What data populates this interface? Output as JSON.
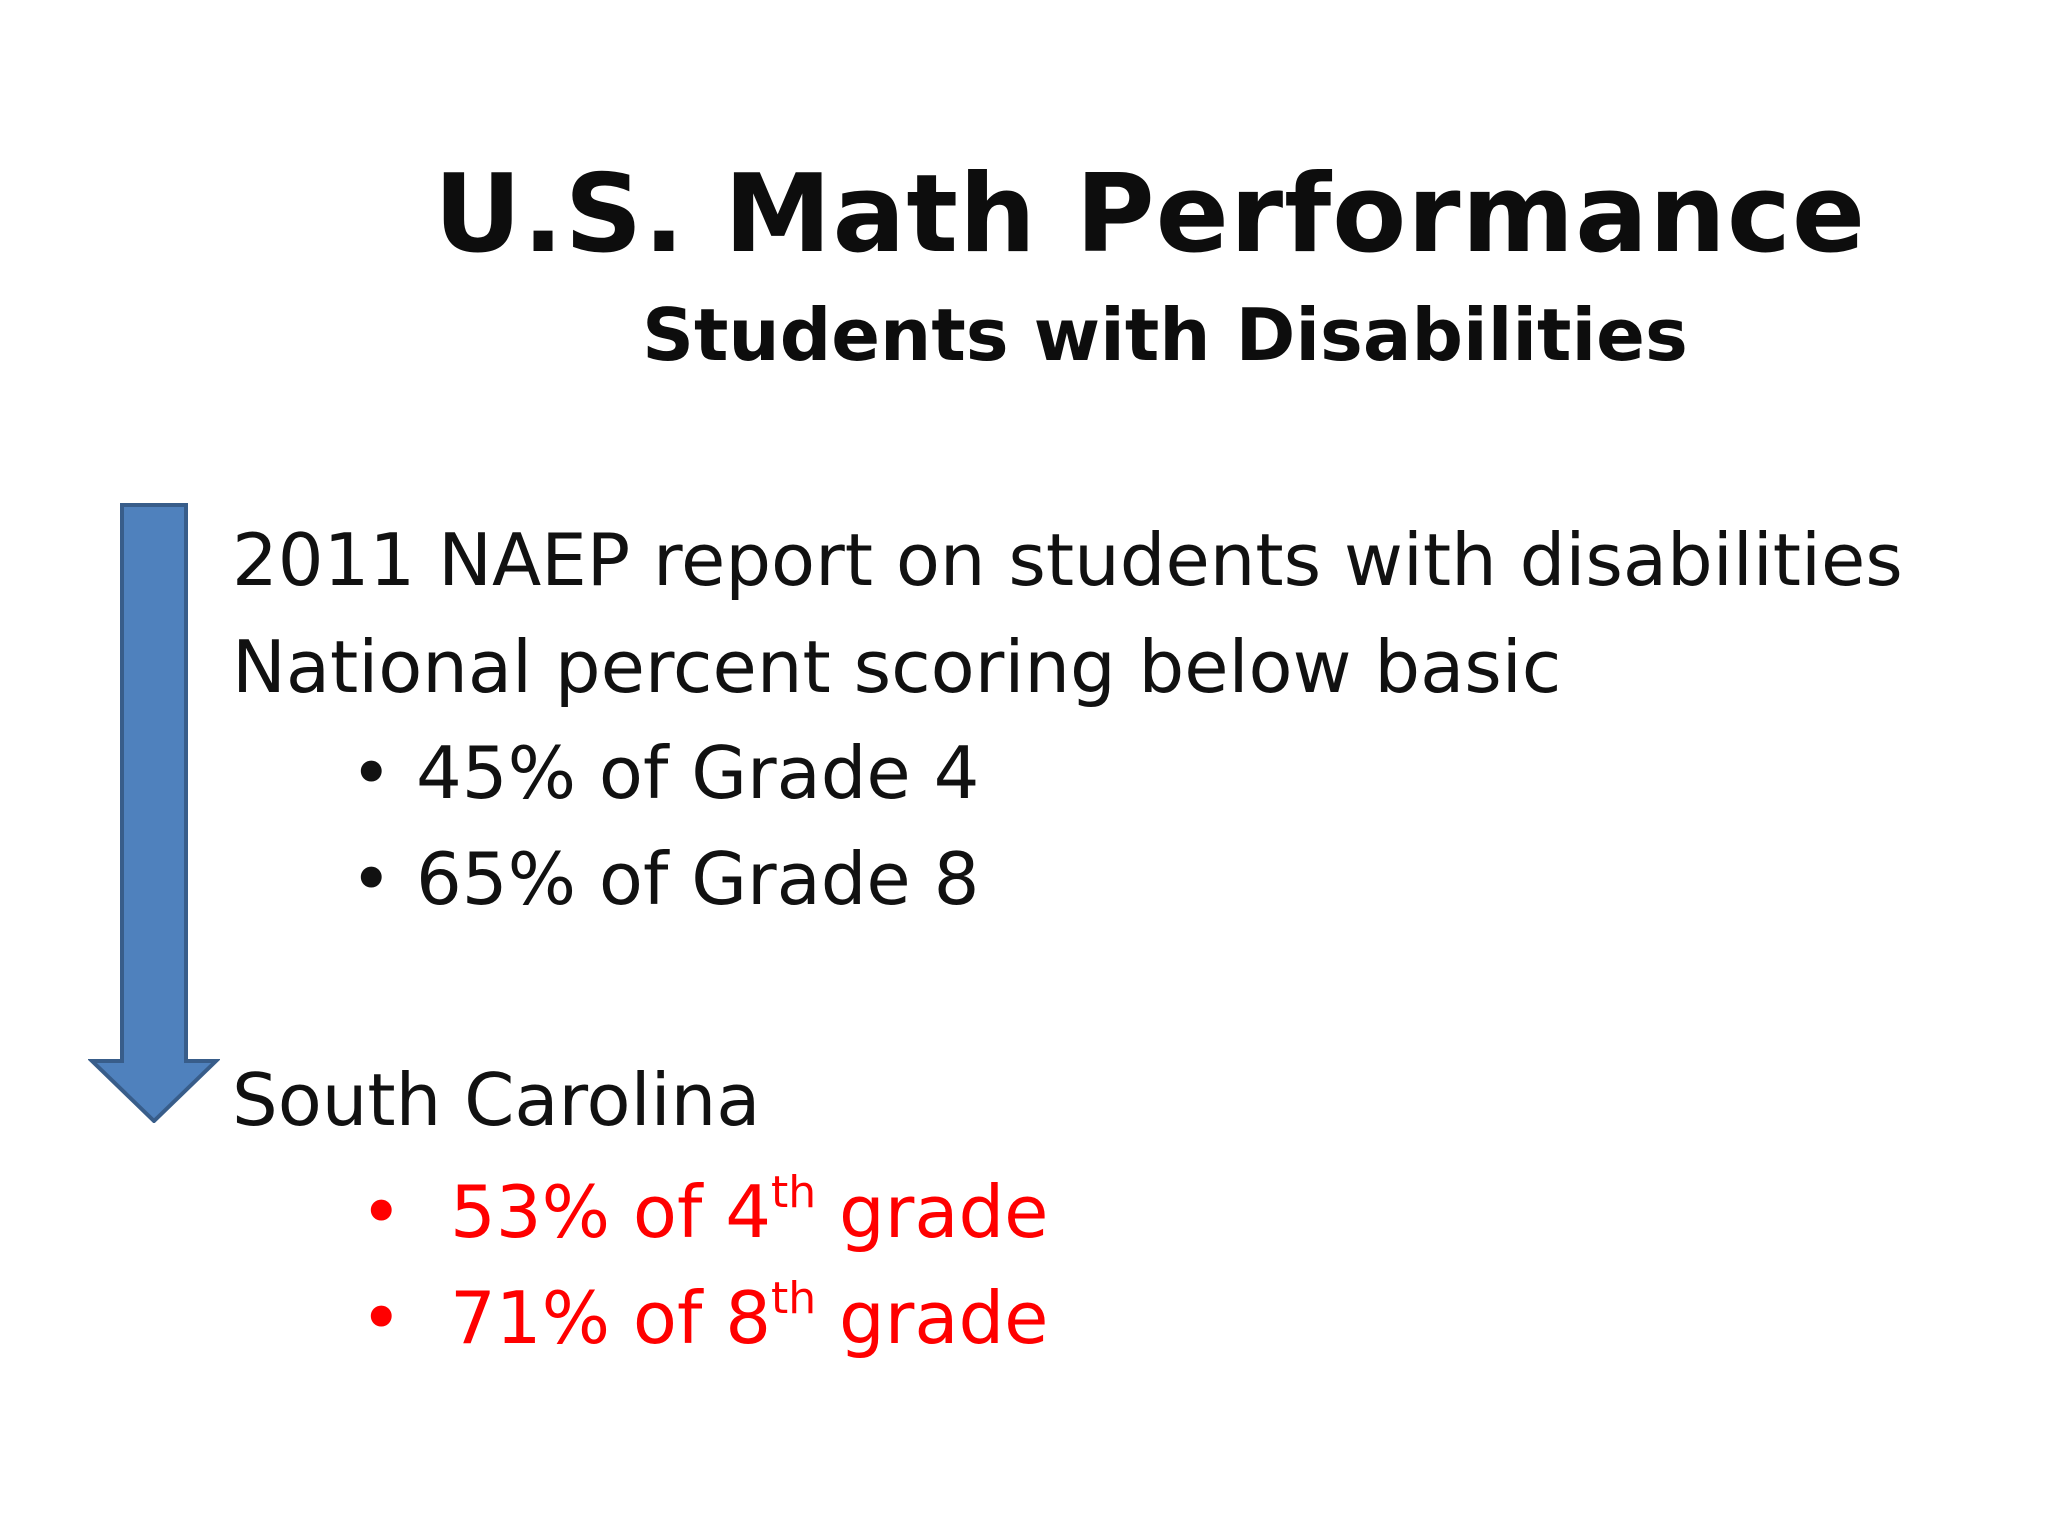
{
  "slide": {
    "title": "U.S. Math Performance",
    "subtitle": "Students with Disabilities",
    "report_line": "2011 NAEP report on students with disabilities",
    "national_line": "National percent scoring below basic",
    "national_bullets": [
      "45% of Grade 4",
      "65% of Grade 8"
    ],
    "state_heading": "South Carolina",
    "state_bullets": [
      {
        "pre": "53% of 4",
        "sup": "th",
        "post": " grade"
      },
      {
        "pre": "71% of 8",
        "sup": "th",
        "post": " grade"
      }
    ],
    "bullet_char": "•"
  },
  "colors": {
    "arrow_fill": "#4f81bd",
    "arrow_stroke": "#385d8a",
    "highlight_text": "#ff0000",
    "body_text": "#111111"
  },
  "icons": {
    "arrow": "down-arrow-icon"
  }
}
